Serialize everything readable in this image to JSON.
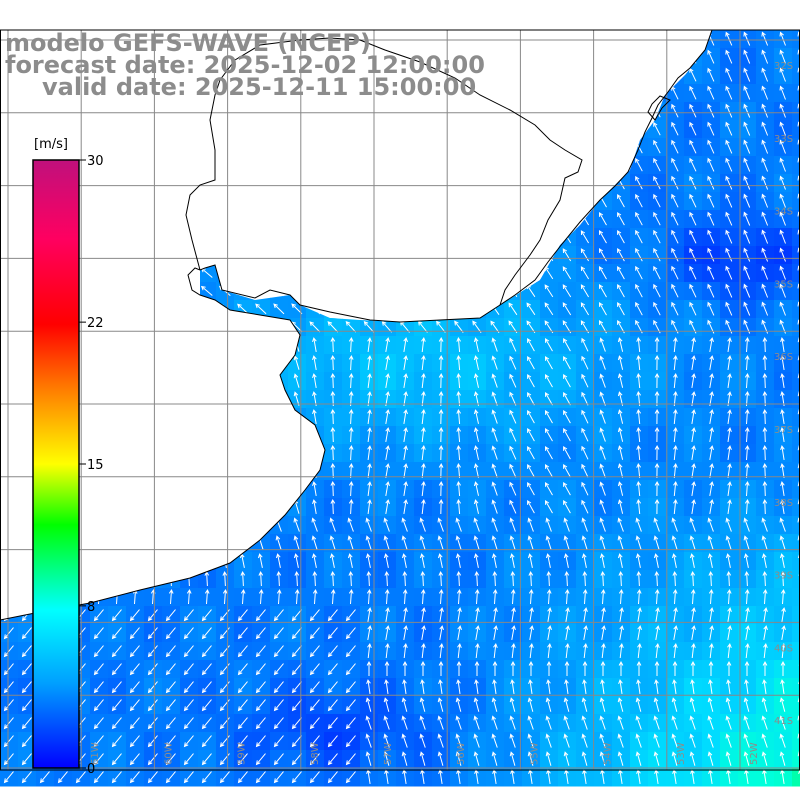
{
  "header": {
    "model": "modelo GEFS-WAVE (NCEP)",
    "forecast": "forecast date: 2025-12-02 12:00:00",
    "valid": "valid date: 2025-12-11 15:00:00"
  },
  "colorbar": {
    "unit": "[m/s]",
    "ticks": [
      {
        "value": 30,
        "label": "30"
      },
      {
        "value": 22,
        "label": "22"
      },
      {
        "value": 15,
        "label": "15"
      },
      {
        "value": 8,
        "label": "8"
      },
      {
        "value": 0,
        "label": "0"
      }
    ],
    "stops": [
      "#0000ff",
      "#00c8ff",
      "#00ffff",
      "#00ff00",
      "#ffff00",
      "#ff8000",
      "#ff0000",
      "#ff0080",
      "#c8007c"
    ]
  },
  "grid_labels": {
    "right_lat": [
      "32S",
      "33S",
      "34S",
      "35S",
      "36S",
      "37S",
      "38S",
      "39S",
      "40S",
      "41S"
    ],
    "bottom_lon": [
      "61W",
      "60W",
      "59W",
      "58W",
      "57W",
      "56W",
      "55W",
      "54W",
      "53W",
      "52W"
    ]
  },
  "colors": {
    "land": "#ffffff",
    "grid": "#888888",
    "coast": "#000000",
    "arrow": "#ffffff"
  }
}
